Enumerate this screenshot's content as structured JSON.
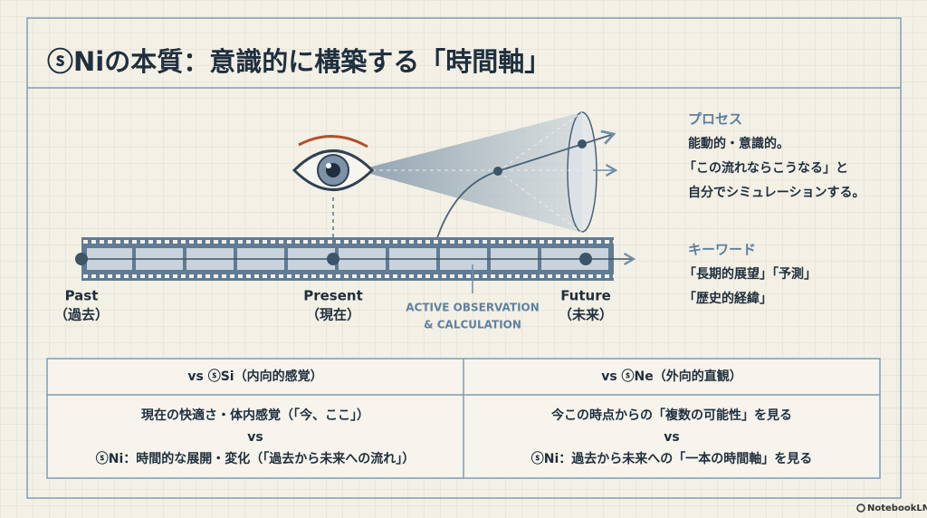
{
  "header": {
    "title": "ⓢNiの本質：意識的に構築する「時間軸」"
  },
  "diagram": {
    "timeline": [
      {
        "label": "Past",
        "sublabel": "（過去）"
      },
      {
        "label": "Present",
        "sublabel": "（現在）"
      },
      {
        "label": "Future",
        "sublabel": "（未来）"
      }
    ],
    "annotation": [
      "ACTIVE OBSERVATION",
      "& CALCULATION"
    ]
  },
  "sidebar": {
    "process": {
      "heading": "プロセス",
      "lines": [
        "能動的・意識的。",
        "「この流れならこうなる」と",
        "自分でシミュレーションする。"
      ]
    },
    "keywords": {
      "heading": "キーワード",
      "lines": [
        "「長期的展望」「予測」",
        "「歴史的経緯」"
      ]
    }
  },
  "table": {
    "headers": [
      "vs ⓢSi（内向的感覚）",
      "vs ⓢNe（外向的直観）"
    ],
    "rows": [
      [
        [
          "現在の快適さ・体内感覚（「今、ここ」）",
          "vs",
          "ⓢNi：時間的な展開・変化（「過去から未来への流れ」）"
        ],
        [
          "今この時点からの「複数の可能性」を見る",
          "vs",
          "ⓢNi：過去から未来への「一本の時間軸」を見る"
        ]
      ]
    ]
  },
  "footer": {
    "brand": "NotebookLM"
  }
}
